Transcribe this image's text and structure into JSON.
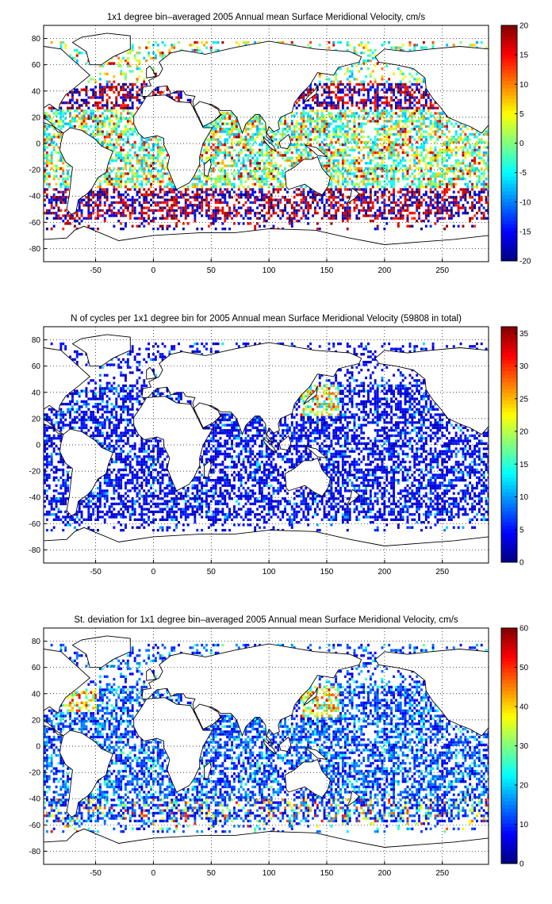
{
  "chart_data": [
    {
      "type": "heatmap",
      "title": "1x1 degree bin–averaged 2005 Annual mean Surface Meridional Velocity, cm/s",
      "xlabel": "",
      "ylabel": "",
      "xlim": [
        -95,
        290
      ],
      "ylim": [
        -90,
        90
      ],
      "x_ticks": [
        "-50",
        "0",
        "50",
        "100",
        "150",
        "200",
        "250"
      ],
      "y_ticks": [
        "80",
        "60",
        "40",
        "20",
        "0",
        "-20",
        "-40",
        "-60",
        "-80"
      ],
      "colorbar": {
        "min": -20,
        "max": 20,
        "ticks": [
          "20",
          "15",
          "10",
          "5",
          "0",
          "-5",
          "-10",
          "-15",
          "-20"
        ]
      },
      "grid": true,
      "colormap": "jet"
    },
    {
      "type": "heatmap",
      "title": "N of cycles per 1x1 degree bin for 2005 Annual mean Surface Meridional Velocity (59808 in total)",
      "xlabel": "",
      "ylabel": "",
      "xlim": [
        -95,
        290
      ],
      "ylim": [
        -90,
        90
      ],
      "x_ticks": [
        "-50",
        "0",
        "50",
        "100",
        "150",
        "200",
        "250"
      ],
      "y_ticks": [
        "80",
        "60",
        "40",
        "20",
        "0",
        "-20",
        "-40",
        "-60",
        "-80"
      ],
      "colorbar": {
        "min": 0,
        "max": 36,
        "ticks": [
          "35",
          "30",
          "25",
          "20",
          "15",
          "10",
          "5",
          "0"
        ]
      },
      "grid": true,
      "colormap": "jet"
    },
    {
      "type": "heatmap",
      "title": "St. deviation for 1x1 degree bin–averaged 2005 Annual mean Surface Meridional Velocity, cm/s",
      "xlabel": "",
      "ylabel": "",
      "xlim": [
        -95,
        290
      ],
      "ylim": [
        -90,
        90
      ],
      "x_ticks": [
        "-50",
        "0",
        "50",
        "100",
        "150",
        "200",
        "250"
      ],
      "y_ticks": [
        "80",
        "60",
        "40",
        "20",
        "0",
        "-20",
        "-40",
        "-60",
        "-80"
      ],
      "colorbar": {
        "min": 0,
        "max": 60,
        "ticks": [
          "60",
          "50",
          "40",
          "30",
          "20",
          "10",
          "0"
        ]
      },
      "grid": true,
      "colormap": "jet"
    }
  ],
  "colors": {
    "axis": "#000000",
    "grid": "#000000",
    "coast": "#000000",
    "background": "#ffffff"
  }
}
